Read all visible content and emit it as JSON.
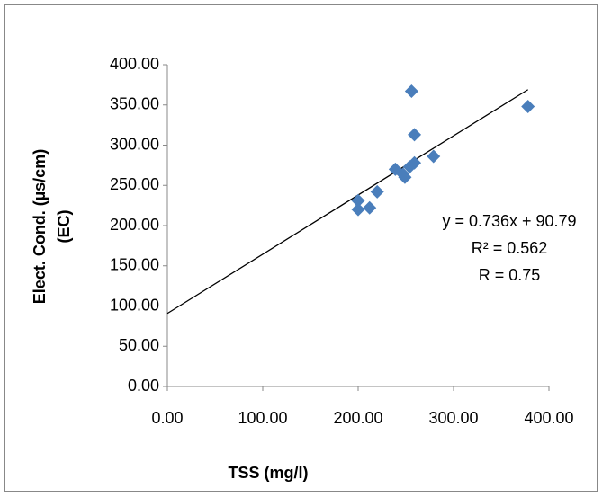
{
  "chart_data": {
    "type": "scatter",
    "xlabel": "TSS (mg/l)",
    "ylabel": [
      "Elect. Cond. (µs/cm)",
      "(EC)"
    ],
    "x": [
      378,
      256,
      259,
      279,
      259,
      239,
      247,
      249,
      254,
      220,
      200,
      212,
      200
    ],
    "values": [
      348,
      367,
      313,
      286,
      278,
      270,
      264,
      260,
      273,
      242,
      231,
      222,
      220
    ],
    "color": "#4a7ebb",
    "xlim": [
      0,
      400
    ],
    "xticks": [
      {
        "value": 0,
        "label": "0.00"
      },
      {
        "value": 100,
        "label": "100.00"
      },
      {
        "value": 200,
        "label": "200.00"
      },
      {
        "value": 300,
        "label": "300.00"
      },
      {
        "value": 400,
        "label": "400.00"
      }
    ],
    "ylim": [
      0,
      400
    ],
    "yticks": [
      {
        "value": 0,
        "label": "0.00"
      },
      {
        "value": 50,
        "label": "50.00"
      },
      {
        "value": 100,
        "label": "100.00"
      },
      {
        "value": 150,
        "label": "150.00"
      },
      {
        "value": 200,
        "label": "200.00"
      },
      {
        "value": 250,
        "label": "250.00"
      },
      {
        "value": 300,
        "label": "300.00"
      },
      {
        "value": 350,
        "label": "350.00"
      },
      {
        "value": 400,
        "label": "400.00"
      }
    ],
    "grid": false,
    "annotations": [
      "y = 0.736x + 90.79",
      "R² = 0.562",
      "R = 0.75"
    ]
  }
}
